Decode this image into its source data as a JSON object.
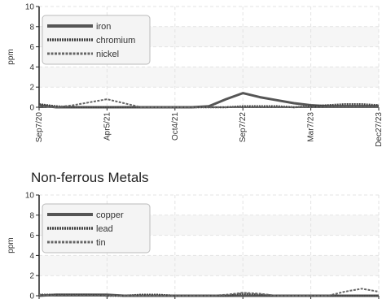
{
  "chart_data": [
    {
      "type": "line",
      "title": "",
      "ylabel": "ppm",
      "xlabel": "",
      "ylim": [
        0,
        10
      ],
      "y_ticks": [
        0,
        2,
        4,
        6,
        8,
        10
      ],
      "grid": true,
      "legend_position": "top-left",
      "x_tick_labels": [
        "Sep7/20",
        "Apr5/21",
        "Oct4/21",
        "Sep7/22",
        "Mar7/23",
        "Dec27/23"
      ],
      "x_tick_index": [
        0,
        4,
        8,
        12,
        16,
        20
      ],
      "series": [
        {
          "name": "iron",
          "values": [
            0.2,
            0,
            0,
            0,
            0,
            0,
            0,
            0,
            0,
            0,
            0.1,
            0.8,
            1.4,
            1.0,
            0.7,
            0.4,
            0.2,
            0.1,
            0.1,
            0.1,
            0.1
          ]
        },
        {
          "name": "chromium",
          "values": [
            0.3,
            0.1,
            0,
            0,
            0,
            0,
            0,
            0,
            0,
            0,
            0,
            0,
            0.1,
            0.1,
            0.1,
            0,
            0.1,
            0.2,
            0.3,
            0.3,
            0.2
          ]
        },
        {
          "name": "nickel",
          "values": [
            0.1,
            0,
            0.2,
            0.5,
            0.8,
            0.4,
            0,
            0,
            0,
            0,
            0,
            0,
            0,
            0,
            0,
            0,
            0,
            0,
            0,
            0,
            0
          ]
        }
      ]
    },
    {
      "type": "line",
      "title": "Non-ferrous Metals",
      "ylabel": "ppm",
      "xlabel": "",
      "ylim": [
        0,
        10
      ],
      "y_ticks": [
        0,
        2,
        4,
        6,
        8,
        10
      ],
      "grid": true,
      "legend_position": "top-left",
      "series": [
        {
          "name": "copper",
          "values": [
            0,
            0.1,
            0.1,
            0.1,
            0.1,
            0,
            0,
            0,
            0,
            0,
            0,
            0,
            0,
            0,
            0,
            0,
            0,
            0,
            0,
            0,
            0
          ]
        },
        {
          "name": "lead",
          "values": [
            0.1,
            0.1,
            0.1,
            0.1,
            0,
            0,
            0.1,
            0.1,
            0,
            0,
            0,
            0,
            0.2,
            0.1,
            0,
            0,
            0,
            0,
            0,
            0,
            0
          ]
        },
        {
          "name": "tin",
          "values": [
            0.1,
            0,
            0,
            0,
            0,
            0,
            0,
            0,
            0,
            0,
            0,
            0.1,
            0.3,
            0.2,
            0,
            0,
            0,
            0,
            0.4,
            0.7,
            0.4
          ]
        }
      ]
    }
  ],
  "styles": {
    "series_colors": [
      "#555555",
      "#444444",
      "#666666"
    ],
    "grid_color": "#e3e3e3",
    "band_color": "#f6f6f6",
    "axis_color": "#222222",
    "text_color": "#333333",
    "legend_bg": "#f4f4f4",
    "legend_border": "#bbbbbb"
  }
}
